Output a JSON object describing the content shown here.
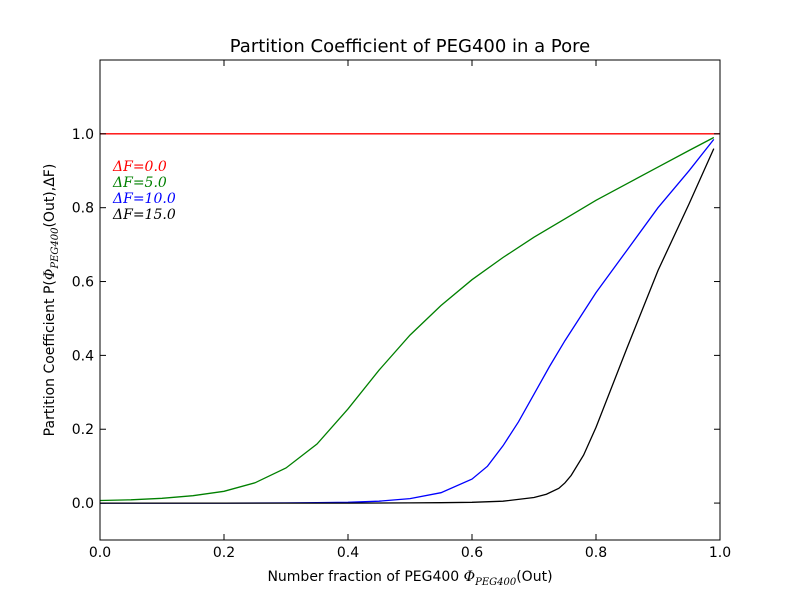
{
  "chart_data": {
    "type": "line",
    "title": "Partition Coefficient of PEG400 in a Pore",
    "xlabel": {
      "prefix": "Number fraction of PEG400 ",
      "symbol": "Φ",
      "subscript": "PEG400",
      "suffix": "(Out)"
    },
    "ylabel": {
      "prefix": "Partition Coefficient  P(",
      "symbol": "Φ",
      "subscript": "PEG400",
      "suffix": "(Out),ΔF)"
    },
    "xlim": [
      0.0,
      1.0
    ],
    "ylim": [
      -0.1,
      1.2
    ],
    "xticks": [
      "0.0",
      "0.2",
      "0.4",
      "0.6",
      "0.8",
      "1.0"
    ],
    "yticks": [
      "0.0",
      "0.2",
      "0.4",
      "0.6",
      "0.8",
      "1.0"
    ],
    "grid": false,
    "legend_position": "upper-left",
    "series": [
      {
        "name": "ΔF=0.0",
        "color": "#ff0000",
        "x": [
          0.0,
          0.1,
          0.2,
          0.3,
          0.4,
          0.5,
          0.6,
          0.7,
          0.8,
          0.9,
          1.0
        ],
        "y": [
          1.0,
          1.0,
          1.0,
          1.0,
          1.0,
          1.0,
          1.0,
          1.0,
          1.0,
          1.0,
          1.0
        ]
      },
      {
        "name": "ΔF=5.0",
        "color": "#008000",
        "x": [
          0.0,
          0.05,
          0.1,
          0.15,
          0.2,
          0.25,
          0.3,
          0.35,
          0.4,
          0.45,
          0.5,
          0.55,
          0.6,
          0.65,
          0.7,
          0.75,
          0.8,
          0.85,
          0.9,
          0.95,
          0.99
        ],
        "y": [
          0.007,
          0.009,
          0.013,
          0.02,
          0.032,
          0.055,
          0.095,
          0.16,
          0.255,
          0.36,
          0.455,
          0.535,
          0.605,
          0.665,
          0.72,
          0.77,
          0.82,
          0.865,
          0.91,
          0.955,
          0.99
        ]
      },
      {
        "name": "ΔF=10.0",
        "color": "#0000ff",
        "x": [
          0.0,
          0.1,
          0.2,
          0.3,
          0.35,
          0.4,
          0.45,
          0.5,
          0.55,
          0.6,
          0.625,
          0.65,
          0.675,
          0.7,
          0.725,
          0.75,
          0.8,
          0.85,
          0.9,
          0.95,
          0.99
        ],
        "y": [
          0.0,
          0.0,
          0.0,
          0.0005,
          0.001,
          0.002,
          0.005,
          0.012,
          0.028,
          0.065,
          0.1,
          0.155,
          0.22,
          0.295,
          0.37,
          0.44,
          0.57,
          0.685,
          0.8,
          0.9,
          0.985
        ]
      },
      {
        "name": "ΔF=15.0",
        "color": "#000000",
        "x": [
          0.0,
          0.2,
          0.4,
          0.5,
          0.55,
          0.6,
          0.65,
          0.7,
          0.72,
          0.74,
          0.75,
          0.76,
          0.78,
          0.8,
          0.85,
          0.9,
          0.95,
          0.99
        ],
        "y": [
          0.0,
          0.0,
          0.0,
          0.0005,
          0.001,
          0.002,
          0.005,
          0.015,
          0.024,
          0.04,
          0.055,
          0.075,
          0.13,
          0.205,
          0.42,
          0.63,
          0.81,
          0.96
        ]
      }
    ]
  }
}
